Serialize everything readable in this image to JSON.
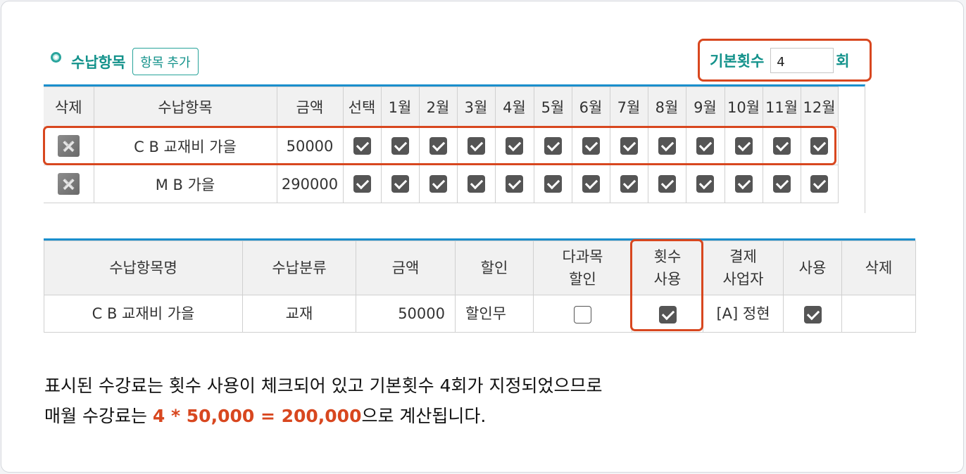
{
  "section": {
    "title": "수납항목",
    "add_button": "항목 추가"
  },
  "base_count": {
    "label": "기본횟수",
    "value": "4",
    "unit": "회"
  },
  "items_table": {
    "headers": [
      "삭제",
      "수납항목",
      "금액",
      "선택",
      "1월",
      "2월",
      "3월",
      "4월",
      "5월",
      "6월",
      "7월",
      "8월",
      "9월",
      "10월",
      "11월",
      "12월"
    ],
    "rows": [
      {
        "name": "C B 교재비 가을",
        "amount": "50000",
        "checks": [
          true,
          true,
          true,
          true,
          true,
          true,
          true,
          true,
          true,
          true,
          true,
          true,
          true
        ]
      },
      {
        "name": "M B 가을",
        "amount": "290000",
        "checks": [
          true,
          true,
          true,
          true,
          true,
          true,
          true,
          true,
          true,
          true,
          true,
          true,
          true
        ]
      }
    ]
  },
  "detail_table": {
    "headers": {
      "name": "수납항목명",
      "category": "수납분류",
      "amount": "금액",
      "discount": "할인",
      "multi_line1": "다과목",
      "multi_line2": "할인",
      "count_line1": "횟수",
      "count_line2": "사용",
      "biz_line1": "결제",
      "biz_line2": "사업자",
      "use": "사용",
      "delete": "삭제"
    },
    "row": {
      "name": "C B 교재비 가을",
      "category": "교재",
      "amount": "50000",
      "discount": "할인무",
      "multi_discount": false,
      "count_use": true,
      "biz": "[A] 정현",
      "use": true
    }
  },
  "description": {
    "line1": "표시된 수강료는 횟수 사용이 체크되어 있고 기본횟수 4회가 지정되었으므로",
    "line2_pre": "매월 수강료는 ",
    "line2_highlight": "4 * 50,000 = 200,000",
    "line2_post": "으로 계산됩니다."
  },
  "colors": {
    "accent_teal": "#13928b",
    "highlight_red": "#d8471f",
    "header_blue": "#1a8fcd"
  }
}
